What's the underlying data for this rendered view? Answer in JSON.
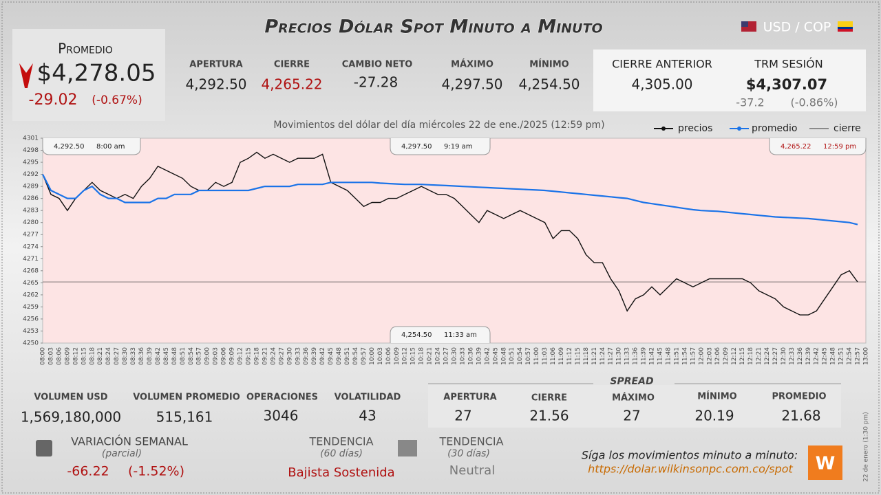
{
  "header": {
    "title": "Precios Dólar Spot Minuto a Minuto",
    "pair": "USD / COP"
  },
  "promedio": {
    "label": "Promedio",
    "value": "$4,278.05",
    "change": "-29.02",
    "change_pct": "(-0.67%)"
  },
  "stats": [
    {
      "label": "APERTURA",
      "value": "4,292.50"
    },
    {
      "label": "CIERRE",
      "value": "4,265.22"
    },
    {
      "label": "CAMBIO NETO",
      "value": "-27.28"
    },
    {
      "label": "MÁXIMO",
      "value": "4,297.50"
    },
    {
      "label": "MÍNIMO",
      "value": "4,254.50"
    }
  ],
  "cierre_anterior": {
    "label": "CIERRE ANTERIOR",
    "value": "4,305.00"
  },
  "trm": {
    "label": "TRM SESIÓN",
    "value": "$4,307.07",
    "change": "-37.2",
    "change_pct": "(-0.86%)"
  },
  "chart_data": {
    "type": "line",
    "title": "Movimientos del dólar del día miércoles 22 de ene./2025 (12:59 pm)",
    "x": [
      "08:00",
      "08:03",
      "08:06",
      "08:09",
      "08:12",
      "08:15",
      "08:18",
      "08:21",
      "08:24",
      "08:27",
      "08:30",
      "08:33",
      "08:36",
      "08:39",
      "08:42",
      "08:45",
      "08:48",
      "08:51",
      "08:54",
      "08:57",
      "09:00",
      "09:03",
      "09:06",
      "09:09",
      "09:12",
      "09:15",
      "09:18",
      "09:21",
      "09:24",
      "09:27",
      "09:30",
      "09:33",
      "09:36",
      "09:39",
      "09:42",
      "09:45",
      "09:48",
      "09:51",
      "09:54",
      "09:57",
      "10:00",
      "10:03",
      "10:06",
      "10:09",
      "10:12",
      "10:15",
      "10:18",
      "10:21",
      "10:24",
      "10:27",
      "10:30",
      "10:33",
      "10:36",
      "10:39",
      "10:42",
      "10:45",
      "10:48",
      "10:51",
      "10:54",
      "10:57",
      "11:00",
      "11:03",
      "11:06",
      "11:09",
      "11:12",
      "11:15",
      "11:18",
      "11:21",
      "11:24",
      "11:27",
      "11:30",
      "11:33",
      "11:36",
      "11:39",
      "11:42",
      "11:45",
      "11:48",
      "11:51",
      "11:54",
      "11:57",
      "12:00",
      "12:03",
      "12:06",
      "12:09",
      "12:12",
      "12:15",
      "12:18",
      "12:21",
      "12:24",
      "12:27",
      "12:30",
      "12:33",
      "12:36",
      "12:39",
      "12:42",
      "12:45",
      "12:48",
      "12:51",
      "12:54",
      "12:57",
      "13:00"
    ],
    "series": [
      {
        "name": "precios",
        "color": "#111111",
        "values": [
          4292,
          4287,
          4286,
          4283,
          4286,
          4288,
          4290,
          4288,
          4287,
          4286,
          4287,
          4286,
          4289,
          4291,
          4294,
          4293,
          4292,
          4291,
          4289,
          4288,
          4288,
          4290,
          4289,
          4290,
          4295,
          4296,
          4297.5,
          4296,
          4297,
          4296,
          4295,
          4296,
          4296,
          4296,
          4297,
          4290,
          4289,
          4288,
          4286,
          4284,
          4285,
          4285,
          4286,
          4286,
          4287,
          4288,
          4289,
          4288,
          4287,
          4287,
          4286,
          4284,
          4282,
          4280,
          4283,
          4282,
          4281,
          4282,
          4283,
          4282,
          4281,
          4280,
          4276,
          4278,
          4278,
          4276,
          4272,
          4270,
          4270,
          4266,
          4263,
          4258,
          4261,
          4262,
          4264,
          4262,
          4264,
          4266,
          4265,
          4264,
          4265,
          4266,
          4266,
          4266,
          4266,
          4266,
          4265,
          4263,
          4262,
          4261,
          4259,
          4258,
          4257,
          4257,
          4258,
          4261,
          4264,
          4267,
          4268,
          4265.22,
          null
        ]
      },
      {
        "name": "promedio",
        "color": "#1a73e8",
        "values": [
          4292,
          4288,
          4287,
          4286,
          4286,
          4288,
          4289,
          4287,
          4286,
          4286,
          4285,
          4285,
          4285,
          4285,
          4286,
          4286,
          4287,
          4287,
          4287,
          4288,
          4288,
          4288,
          4288,
          4288,
          4288,
          4288,
          4288.5,
          4289,
          4289,
          4289,
          4289,
          4289.5,
          4289.5,
          4289.5,
          4289.5,
          4290,
          4290,
          4290,
          4290,
          4290,
          4290,
          4289.8,
          4289.7,
          4289.6,
          4289.5,
          4289.5,
          4289.5,
          4289.4,
          4289.3,
          4289.2,
          4289.1,
          4289,
          4288.9,
          4288.8,
          4288.7,
          4288.6,
          4288.5,
          4288.4,
          4288.3,
          4288.2,
          4288.1,
          4288,
          4287.8,
          4287.6,
          4287.4,
          4287.2,
          4287,
          4286.8,
          4286.6,
          4286.4,
          4286.2,
          4286,
          4285.5,
          4285,
          4284.7,
          4284.4,
          4284.1,
          4283.8,
          4283.5,
          4283.2,
          4283,
          4282.9,
          4282.8,
          4282.6,
          4282.4,
          4282.2,
          4282,
          4281.8,
          4281.6,
          4281.4,
          4281.3,
          4281.2,
          4281.1,
          4281,
          4280.8,
          4280.6,
          4280.4,
          4280.2,
          4280,
          4279.5,
          null
        ]
      }
    ],
    "cierre": {
      "name": "cierre",
      "color": "#333333",
      "value": 4265.22
    },
    "ylim": [
      4250,
      4301
    ],
    "yticks": [
      4250,
      4253,
      4256,
      4259,
      4262,
      4265,
      4268,
      4271,
      4274,
      4277,
      4280,
      4283,
      4286,
      4289,
      4292,
      4295,
      4298,
      4301
    ],
    "annotations": [
      {
        "price": "4,292.50",
        "time": "8:00 am"
      },
      {
        "price": "4,297.50",
        "time": "9:19 am"
      },
      {
        "price": "4,265.22",
        "time": "12:59 pm"
      },
      {
        "price": "4,254.50",
        "time": "11:33 am"
      }
    ]
  },
  "volume": [
    {
      "label": "VOLUMEN USD",
      "value": "1,569,180,000"
    },
    {
      "label": "VOLUMEN PROMEDIO",
      "value": "515,161"
    },
    {
      "label": "OPERACIONES",
      "value": "3046"
    },
    {
      "label": "VOLATILIDAD",
      "value": "43"
    }
  ],
  "spread": {
    "title": "SPREAD",
    "items": [
      {
        "label": "APERTURA",
        "value": "27"
      },
      {
        "label": "CIERRE",
        "value": "21.56"
      },
      {
        "label": "MÁXIMO",
        "value": "27"
      },
      {
        "label": "MÍNIMO",
        "value": "20.19"
      },
      {
        "label": "PROMEDIO",
        "value": "21.68"
      }
    ]
  },
  "variacion": {
    "label": "VARIACIÓN SEMANAL",
    "note": "(parcial)",
    "value": "-66.22",
    "pct": "(-1.52%)"
  },
  "tendencia60": {
    "label": "TENDENCIA",
    "note": "(60 días)",
    "value": "Bajista Sostenida"
  },
  "tendencia30": {
    "label": "TENDENCIA",
    "note": "(30 días)",
    "value": "Neutral"
  },
  "footer": {
    "text": "Síga los movimientos minuto a minuto:",
    "url": "https://dolar.wilkinsonpc.com.co/spot",
    "stamp": "22 de enero (1:30 pm)"
  }
}
